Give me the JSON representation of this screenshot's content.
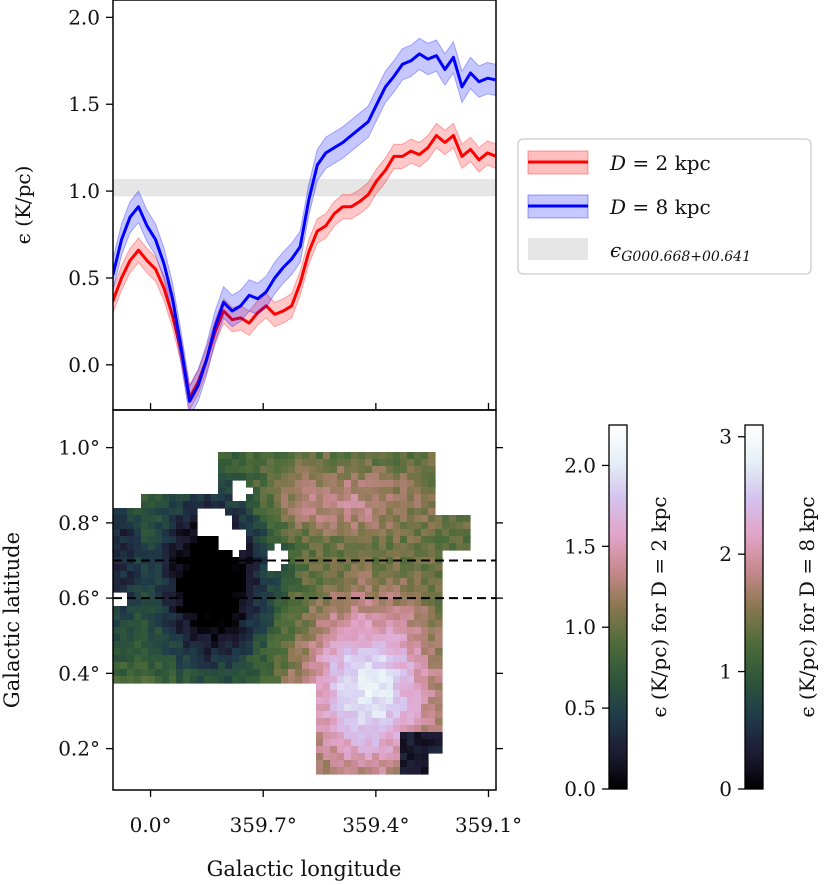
{
  "chart_data": [
    {
      "type": "line",
      "name": "epsilon-vs-longitude",
      "ylabel": "ϵ (K/pc)",
      "xlim": [
        0.07,
        -0.11
      ],
      "ylim": [
        -0.26,
        2.1
      ],
      "yticks": [
        0.0,
        0.5,
        1.0,
        1.5,
        2.0
      ],
      "yticklabels": [
        "0.0",
        "0.5",
        "1.0",
        "1.5",
        "2.0"
      ],
      "band": {
        "name": "ϵ_{G000.668+00.641}",
        "range": [
          0.97,
          1.07
        ],
        "color": "#e6e6e6"
      },
      "legend": {
        "position": "right",
        "entries": [
          {
            "label_math": "D",
            "label_rest": " = 2 kpc",
            "color": "#ff0000"
          },
          {
            "label_math": "D",
            "label_rest": " = 8 kpc",
            "color": "#0000ff"
          },
          {
            "label_math": "ϵ",
            "label_sub": "G000.668+00.641",
            "color": "#e6e6e6"
          }
        ]
      },
      "series": [
        {
          "name": "D = 2 kpc",
          "color": "#ff0000",
          "x": [
            0.073,
            0.07,
            0.066,
            0.062,
            0.058,
            0.054,
            0.05,
            0.046,
            0.042,
            0.038,
            0.034,
            0.03,
            0.026,
            0.022,
            0.018,
            0.014,
            0.01,
            0.006,
            0.002,
            -0.002,
            -0.006,
            -0.01,
            -0.014,
            -0.018,
            -0.022,
            -0.026,
            -0.03,
            -0.034,
            -0.038,
            -0.042,
            -0.046,
            -0.05,
            -0.054,
            -0.058,
            -0.062,
            -0.066,
            -0.07,
            -0.074,
            -0.078,
            -0.082,
            -0.086,
            -0.09,
            -0.094,
            -0.098,
            -0.102,
            -0.106,
            -0.11
          ],
          "values": [
            0.34,
            0.37,
            0.5,
            0.6,
            0.66,
            0.6,
            0.55,
            0.44,
            0.28,
            0.08,
            -0.19,
            -0.1,
            0.03,
            0.19,
            0.31,
            0.26,
            0.27,
            0.24,
            0.3,
            0.34,
            0.29,
            0.31,
            0.34,
            0.47,
            0.65,
            0.77,
            0.8,
            0.87,
            0.91,
            0.91,
            0.94,
            0.98,
            1.06,
            1.12,
            1.2,
            1.2,
            1.23,
            1.21,
            1.25,
            1.32,
            1.28,
            1.32,
            1.2,
            1.24,
            1.18,
            1.22,
            1.2
          ],
          "band_half_width": 0.07
        },
        {
          "name": "D = 8 kpc",
          "color": "#0000ff",
          "x": [
            0.073,
            0.07,
            0.066,
            0.062,
            0.058,
            0.054,
            0.05,
            0.046,
            0.042,
            0.038,
            0.034,
            0.03,
            0.026,
            0.022,
            0.018,
            0.014,
            0.01,
            0.006,
            0.002,
            -0.002,
            -0.006,
            -0.01,
            -0.014,
            -0.018,
            -0.022,
            -0.026,
            -0.03,
            -0.034,
            -0.038,
            -0.042,
            -0.046,
            -0.05,
            -0.054,
            -0.058,
            -0.062,
            -0.066,
            -0.07,
            -0.074,
            -0.078,
            -0.082,
            -0.086,
            -0.09,
            -0.094,
            -0.098,
            -0.102,
            -0.106,
            -0.11
          ],
          "values": [
            0.47,
            0.52,
            0.72,
            0.85,
            0.91,
            0.8,
            0.72,
            0.58,
            0.38,
            0.1,
            -0.21,
            -0.12,
            0.03,
            0.22,
            0.36,
            0.31,
            0.34,
            0.4,
            0.38,
            0.42,
            0.5,
            0.56,
            0.61,
            0.68,
            0.95,
            1.15,
            1.22,
            1.25,
            1.28,
            1.32,
            1.36,
            1.4,
            1.5,
            1.6,
            1.66,
            1.73,
            1.75,
            1.79,
            1.76,
            1.78,
            1.7,
            1.77,
            1.6,
            1.68,
            1.63,
            1.65,
            1.64
          ],
          "band_half_width": 0.09
        }
      ]
    },
    {
      "type": "heatmap",
      "name": "epsilon-map",
      "xlabel": "Galactic longitude",
      "ylabel": "Galactic latitude",
      "xlim": [
        0.1,
        -0.92
      ],
      "ylim": [
        0.09,
        1.1
      ],
      "xticks": [
        0.0,
        -0.3,
        -0.6,
        -0.9
      ],
      "xticklabels": [
        "0.0°",
        "359.7°",
        "359.4°",
        "359.1°"
      ],
      "yticks": [
        0.2,
        0.4,
        0.6,
        0.8,
        1.0
      ],
      "yticklabels": [
        "0.2°",
        "0.4°",
        "0.6°",
        "0.8°",
        "1.0°"
      ],
      "dashed_lines_latitude": [
        0.6,
        0.7
      ],
      "colorbars": [
        {
          "label": "ϵ (K/pc) for D = 2 kpc",
          "range": [
            0,
            2.25
          ],
          "ticks": [
            0.0,
            0.5,
            1.0,
            1.5,
            2.0
          ],
          "ticklabels": [
            "0.0",
            "0.5",
            "1.0",
            "1.5",
            "2.0"
          ]
        },
        {
          "label": "ϵ (K/pc) for D = 8 kpc",
          "range": [
            0,
            3.1
          ],
          "ticks": [
            0,
            1,
            2,
            3
          ],
          "ticklabels": [
            "0",
            "1",
            "2",
            "3"
          ]
        }
      ]
    }
  ],
  "colormap": [
    "#000000",
    "#1e1b33",
    "#1f3b4a",
    "#2e5639",
    "#4e6c3a",
    "#8a7850",
    "#c7898e",
    "#e2a4c9",
    "#d4c3ef",
    "#e6f0f6",
    "#ffffff"
  ]
}
